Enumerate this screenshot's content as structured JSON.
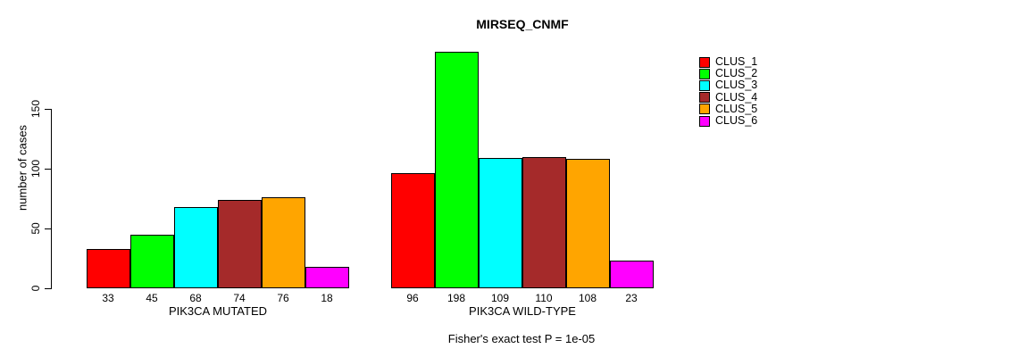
{
  "chart_data": {
    "type": "bar",
    "title": "MIRSEQ_CNMF",
    "xlabel": "",
    "ylabel": "number of cases",
    "annotation": "Fisher's exact test P = 1e-05",
    "yticks": [
      0,
      50,
      100,
      150
    ],
    "ylim": [
      0,
      206
    ],
    "grid": false,
    "legend_position": "right-outside",
    "categories": [
      "PIK3CA MUTATED",
      "PIK3CA WILD-TYPE"
    ],
    "series": [
      {
        "name": "CLUS_1",
        "color": "#ff0000",
        "values": [
          33,
          96
        ]
      },
      {
        "name": "CLUS_2",
        "color": "#00ff00",
        "values": [
          45,
          198
        ]
      },
      {
        "name": "CLUS_3",
        "color": "#00ffff",
        "values": [
          68,
          109
        ]
      },
      {
        "name": "CLUS_4",
        "color": "#a52a2a",
        "values": [
          74,
          110
        ]
      },
      {
        "name": "CLUS_5",
        "color": "#ffa500",
        "values": [
          76,
          108
        ]
      },
      {
        "name": "CLUS_6",
        "color": "#ff00ff",
        "values": [
          18,
          23
        ]
      }
    ],
    "bar_value_labels": {
      "PIK3CA MUTATED": [
        33,
        45,
        68,
        74,
        76,
        18
      ],
      "PIK3CA WILD-TYPE": [
        96,
        198,
        109,
        110,
        108,
        23
      ]
    },
    "axis_color": "#000000",
    "bar_border_color": "#000000",
    "background_color": "#ffffff"
  }
}
